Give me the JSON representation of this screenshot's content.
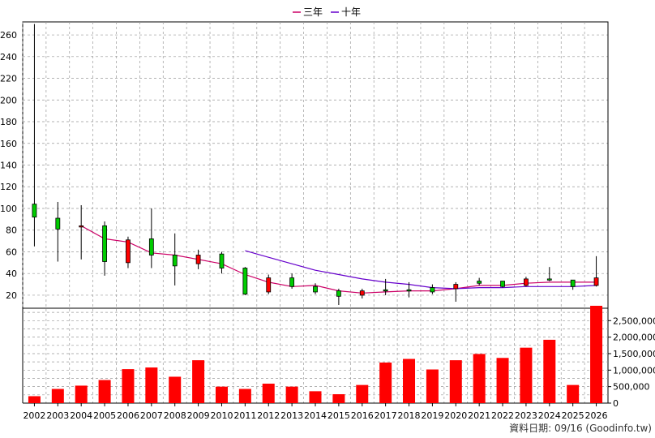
{
  "legend": {
    "items": [
      {
        "label": "三年",
        "color": "#cc0066"
      },
      {
        "label": "十年",
        "color": "#6600cc"
      }
    ]
  },
  "source_text": "資料日期: 09/16 (Goodinfo.tw)",
  "colors": {
    "up": "#ff0000",
    "down": "#00cc00",
    "volume": "#ff0000",
    "grid": "#999999"
  },
  "chart_data": [
    {
      "type": "candlestick",
      "title": "",
      "categories": [
        "2002",
        "2003",
        "2004",
        "2005",
        "2006",
        "2007",
        "2008",
        "2009",
        "2010",
        "2011",
        "2012",
        "2013",
        "2014",
        "2015",
        "2016",
        "2017",
        "2018",
        "2019",
        "2020",
        "2021",
        "2022",
        "2023",
        "2024",
        "2025",
        "2026"
      ],
      "y_ticks": [
        20,
        40,
        60,
        80,
        100,
        120,
        140,
        160,
        180,
        200,
        220,
        240,
        260
      ],
      "ylim": [
        8,
        272
      ],
      "grid": true,
      "ohlc": [
        {
          "o": 92,
          "h": 270,
          "l": 65,
          "c": 104
        },
        {
          "o": 81,
          "h": 106,
          "l": 51,
          "c": 91
        },
        {
          "o": 84,
          "h": 103,
          "l": 53,
          "c": 83
        },
        {
          "o": 51,
          "h": 88,
          "l": 38,
          "c": 84
        },
        {
          "o": 71,
          "h": 74,
          "l": 45,
          "c": 50
        },
        {
          "o": 57,
          "h": 100,
          "l": 45,
          "c": 72
        },
        {
          "o": 47,
          "h": 77,
          "l": 29,
          "c": 57
        },
        {
          "o": 57,
          "h": 62,
          "l": 44,
          "c": 49
        },
        {
          "o": 45,
          "h": 60,
          "l": 40,
          "c": 58
        },
        {
          "o": 21,
          "h": 46,
          "l": 20,
          "c": 45
        },
        {
          "o": 36,
          "h": 39,
          "l": 21,
          "c": 23
        },
        {
          "o": 28,
          "h": 40,
          "l": 26,
          "c": 36
        },
        {
          "o": 23,
          "h": 31,
          "l": 21,
          "c": 28
        },
        {
          "o": 19,
          "h": 26,
          "l": 11,
          "c": 24
        },
        {
          "o": 24,
          "h": 26,
          "l": 17,
          "c": 20
        },
        {
          "o": 24,
          "h": 35,
          "l": 20,
          "c": 25
        },
        {
          "o": 24,
          "h": 32,
          "l": 18,
          "c": 25
        },
        {
          "o": 23,
          "h": 30,
          "l": 21,
          "c": 27
        },
        {
          "o": 30,
          "h": 32,
          "l": 14,
          "c": 26
        },
        {
          "o": 31,
          "h": 36,
          "l": 29,
          "c": 33
        },
        {
          "o": 28,
          "h": 33,
          "l": 27,
          "c": 33
        },
        {
          "o": 35,
          "h": 37,
          "l": 28,
          "c": 29
        },
        {
          "o": 34,
          "h": 46,
          "l": 33,
          "c": 35
        },
        {
          "o": 28,
          "h": 34,
          "l": 25,
          "c": 34
        },
        {
          "o": 36,
          "h": 56,
          "l": 28,
          "c": 29
        }
      ],
      "series": [
        {
          "name": "三年",
          "color": "#cc0066",
          "values": [
            null,
            null,
            84,
            72,
            69,
            59,
            57,
            53,
            49,
            39,
            32,
            28,
            29,
            24,
            22,
            23,
            24,
            24,
            26,
            29,
            29,
            31,
            32,
            32,
            32
          ]
        },
        {
          "name": "十年",
          "color": "#6600cc",
          "values": [
            null,
            null,
            null,
            null,
            null,
            null,
            null,
            null,
            null,
            61,
            55,
            49,
            43,
            39,
            35,
            32,
            30,
            27,
            26,
            27,
            27,
            28,
            28,
            28,
            29
          ]
        }
      ]
    },
    {
      "type": "bar",
      "title": "",
      "categories": [
        "2002",
        "2003",
        "2004",
        "2005",
        "2006",
        "2007",
        "2008",
        "2009",
        "2010",
        "2011",
        "2012",
        "2013",
        "2014",
        "2015",
        "2016",
        "2017",
        "2018",
        "2019",
        "2020",
        "2021",
        "2022",
        "2023",
        "2024",
        "2025",
        "2026"
      ],
      "y_ticks": [
        "0",
        "500,000",
        "1,000,000",
        "1,500,000",
        "2,000,000",
        "2,500,000"
      ],
      "y_tick_values": [
        0,
        500000,
        1000000,
        1500000,
        2000000,
        2500000
      ],
      "ylim": [
        0,
        2950000
      ],
      "grid": true,
      "values": [
        210000,
        430000,
        530000,
        700000,
        1030000,
        1080000,
        800000,
        1300000,
        500000,
        430000,
        590000,
        500000,
        360000,
        270000,
        550000,
        1230000,
        1340000,
        1020000,
        1300000,
        1490000,
        1370000,
        1680000,
        1920000,
        550000,
        2950000
      ]
    }
  ]
}
